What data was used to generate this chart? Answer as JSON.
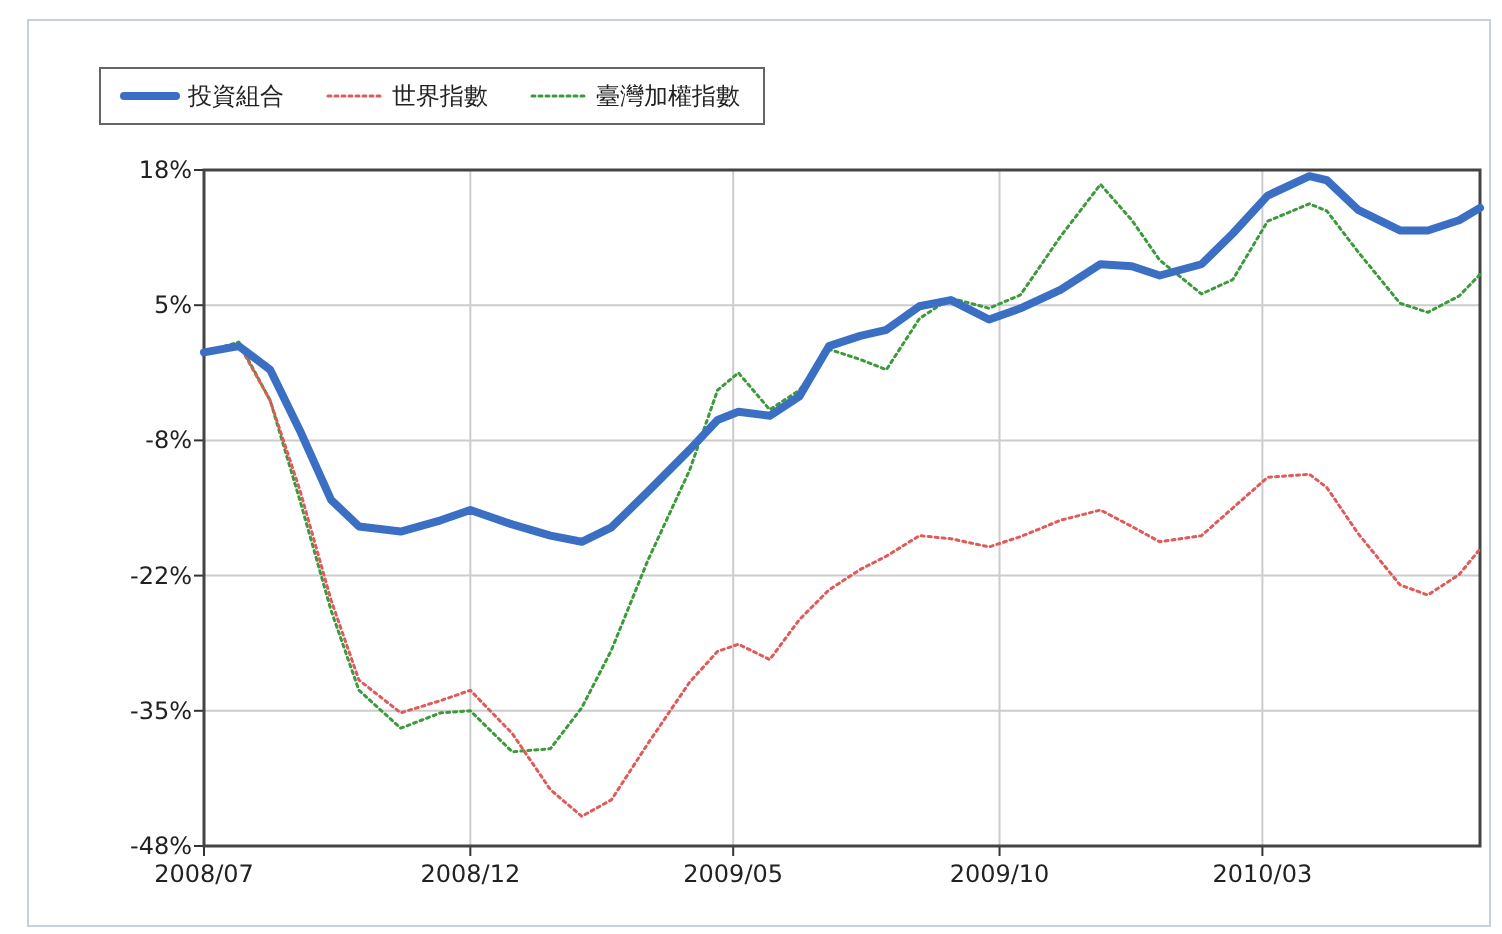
{
  "chart_data": {
    "type": "line",
    "x": [
      "2008-07-01",
      "2008-07-21",
      "2008-08-08",
      "2008-08-25",
      "2008-09-12",
      "2008-09-28",
      "2008-10-22",
      "2008-11-14",
      "2008-12-01",
      "2008-12-25",
      "2009-01-16",
      "2009-02-03",
      "2009-02-20",
      "2009-03-13",
      "2009-04-06",
      "2009-04-22",
      "2009-05-04",
      "2009-05-22",
      "2009-06-08",
      "2009-06-25",
      "2009-07-13",
      "2009-07-28",
      "2009-08-16",
      "2009-09-03",
      "2009-09-25",
      "2009-10-13",
      "2009-11-05",
      "2009-11-28",
      "2009-12-16",
      "2010-01-01",
      "2010-01-25",
      "2010-02-12",
      "2010-03-04",
      "2010-03-28",
      "2010-04-07",
      "2010-04-25",
      "2010-05-19",
      "2010-06-04",
      "2010-06-22",
      "2010-07-04"
    ],
    "series": [
      {
        "name": "投資組合",
        "color": "#3a6fc4",
        "line_style": "solid",
        "values": [
          0.2,
          0.8,
          -1.5,
          -7.4,
          -14.2,
          -16.8,
          -17.3,
          -16.2,
          -15.2,
          -16.6,
          -17.7,
          -18.3,
          -16.9,
          -13.4,
          -9.3,
          -6.4,
          -5.6,
          -6.0,
          -4.1,
          0.8,
          1.8,
          2.4,
          4.7,
          5.3,
          3.4,
          4.5,
          6.3,
          8.8,
          8.6,
          7.7,
          8.8,
          11.8,
          15.5,
          17.4,
          17.0,
          14.1,
          12.1,
          12.1,
          13.1,
          14.3
        ]
      },
      {
        "name": "世界指數",
        "color": "#e05a5a",
        "line_style": "dotted",
        "values": [
          0.2,
          1.0,
          -4.5,
          -13.2,
          -24,
          -31.8,
          -35,
          -33.8,
          -32.8,
          -37,
          -42.5,
          -45.1,
          -43.5,
          -38,
          -32,
          -29,
          -28.3,
          -29.8,
          -25.9,
          -23,
          -21,
          -19.7,
          -17.7,
          -18,
          -18.8,
          -17.8,
          -16.2,
          -15.2,
          -16.8,
          -18.3,
          -17.7,
          -15,
          -12,
          -11.7,
          -13,
          -17.5,
          -22.5,
          -23.5,
          -21.5,
          -19
        ]
      },
      {
        "name": "臺灣加權指數",
        "color": "#3c9a3c",
        "line_style": "dotted",
        "values": [
          0.2,
          1.2,
          -4.5,
          -14.2,
          -25,
          -32.8,
          -36.5,
          -35,
          -34.8,
          -38.8,
          -38.5,
          -34.5,
          -28.9,
          -20.1,
          -11.3,
          -3.5,
          -1.8,
          -5.4,
          -3.5,
          0.5,
          -0.5,
          -1.5,
          3.5,
          5.5,
          4.5,
          5.8,
          11.5,
          16.6,
          13.1,
          9.2,
          5.9,
          7.3,
          13.0,
          14.7,
          14.0,
          10.0,
          5.0,
          4.1,
          5.7,
          7.8
        ]
      }
    ],
    "xlim": [
      "2008-07-01",
      "2010-07-04"
    ],
    "xticks": [
      {
        "value": "2008-07-01",
        "label": "2008/07"
      },
      {
        "value": "2008-12-01",
        "label": "2008/12"
      },
      {
        "value": "2009-05-01",
        "label": "2009/05"
      },
      {
        "value": "2009-10-01",
        "label": "2009/10"
      },
      {
        "value": "2010-03-01",
        "label": "2010/03"
      }
    ],
    "ylim": [
      -48,
      18
    ],
    "yticks": [
      {
        "value": 18,
        "label": "18%"
      },
      {
        "value": 4.8,
        "label": "5%"
      },
      {
        "value": -8.4,
        "label": "-8%"
      },
      {
        "value": -21.6,
        "label": "-22%"
      },
      {
        "value": -34.8,
        "label": "-35%"
      },
      {
        "value": -48,
        "label": "-48%"
      }
    ],
    "grid": true,
    "legend": "top left"
  }
}
